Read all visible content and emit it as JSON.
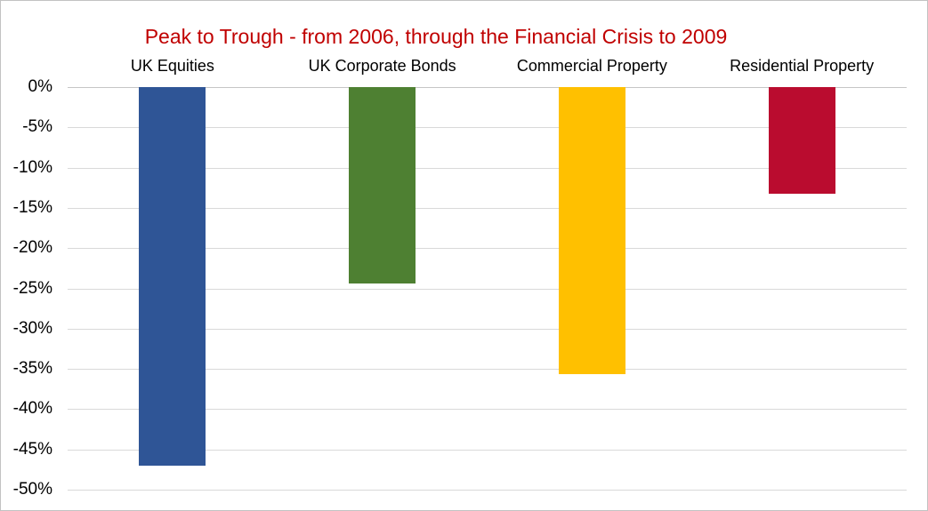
{
  "chart_data": {
    "type": "bar",
    "title": "Peak to Trough - from 2006, through the Financial Crisis to 2009",
    "title_color": "#c00000",
    "categories": [
      "UK Equities",
      "UK Corporate Bonds",
      "Commercial Property",
      "Residential Property"
    ],
    "values": [
      -47.0,
      -24.4,
      -35.6,
      -13.3
    ],
    "bar_colors": [
      "#2f5596",
      "#4e8032",
      "#ffc000",
      "#ba0c2f"
    ],
    "xlabel": "",
    "ylabel": "",
    "ylim": [
      -50,
      0
    ],
    "ytick_step": 5,
    "ytick_labels": [
      "0%",
      "-5%",
      "-10%",
      "-15%",
      "-20%",
      "-25%",
      "-30%",
      "-35%",
      "-40%",
      "-45%",
      "-50%"
    ],
    "grid": true,
    "gridline_color": "#d9d9d9",
    "axis_line_color": "#c6c6c6",
    "legend_position": "none",
    "category_labels_position": "top",
    "background_color": "#ffffff"
  }
}
